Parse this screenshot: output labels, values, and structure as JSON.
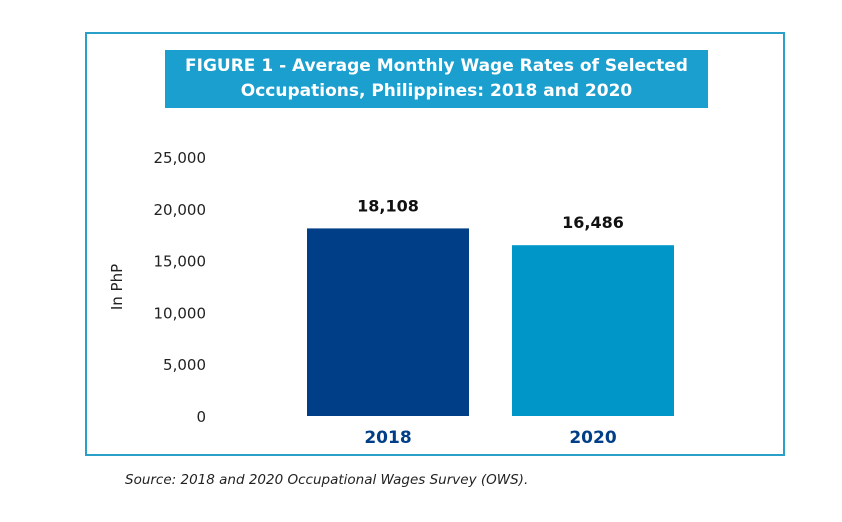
{
  "chart_data": {
    "type": "bar",
    "title_lines": [
      "FIGURE 1 - Average Monthly Wage Rates of Selected",
      "Occupations, Philippines: 2018 and 2020"
    ],
    "categories": [
      "2018",
      "2020"
    ],
    "values": [
      18108,
      16486
    ],
    "data_labels": [
      "18,108",
      "16,486"
    ],
    "ylabel": "In PhP",
    "xlabel": "",
    "ylim": [
      0,
      25000
    ],
    "yticks": [
      0,
      5000,
      10000,
      15000,
      20000,
      25000
    ],
    "ytick_labels": [
      "0",
      "5,000",
      "10,000",
      "15,000",
      "20,000",
      "25,000"
    ],
    "bar_colors": [
      "#003f87",
      "#0096c8"
    ],
    "category_label_color": "#003f87",
    "title_bg": "#1a9fcf",
    "frame_color": "#2aa0c8",
    "grid": false
  },
  "source": "Source: 2018 and 2020 Occupational Wages Survey (OWS)."
}
